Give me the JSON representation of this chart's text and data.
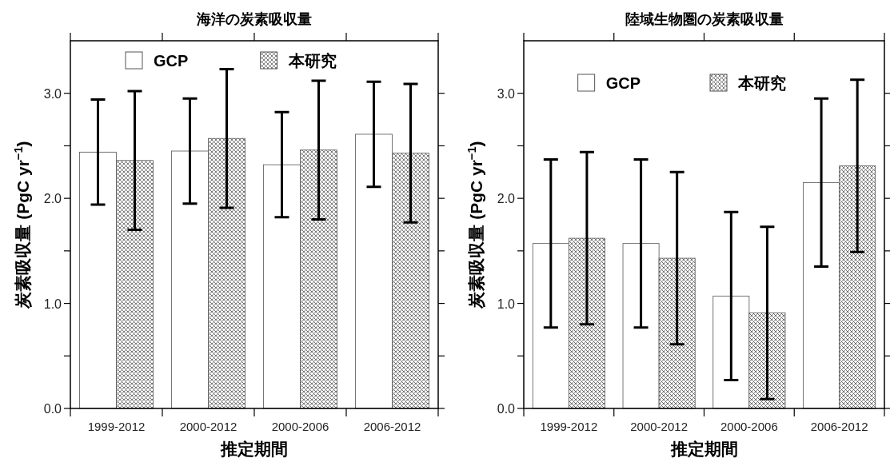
{
  "chart_data": [
    {
      "type": "bar",
      "title": "海洋の炭素吸収量",
      "xlabel": "推定期間",
      "ylabel": "炭素吸収量 (PgC yr$^{−1}$)",
      "categories": [
        "1999-2012",
        "2000-2012",
        "2000-2006",
        "2006-2012"
      ],
      "ylim": [
        0,
        3.5
      ],
      "yticks": [
        {
          "value": 0,
          "label": "0.0"
        },
        {
          "value": 0.5,
          "label": null
        },
        {
          "value": 1,
          "label": "1.0"
        },
        {
          "value": 1.5,
          "label": null
        },
        {
          "value": 2,
          "label": "2.0"
        },
        {
          "value": 2.5,
          "label": null
        },
        {
          "value": 3,
          "label": "3.0"
        }
      ],
      "legend": "top",
      "grid": false,
      "series": [
        {
          "name": "GCP",
          "color": "#ffffff",
          "values": [
            2.44,
            2.45,
            2.32,
            2.61
          ],
          "errors": [
            0.5,
            0.5,
            0.5,
            0.5
          ]
        },
        {
          "name": "本研究",
          "color": "#555555",
          "values": [
            2.36,
            2.57,
            2.46,
            2.43
          ],
          "errors": [
            0.66,
            0.66,
            0.66,
            0.66
          ]
        }
      ]
    },
    {
      "type": "bar",
      "title": "陸域生物圏の炭素吸収量",
      "xlabel": "推定期間",
      "ylabel": "炭素吸収量 (PgC yr$^{−1}$)",
      "categories": [
        "1999-2012",
        "2000-2012",
        "2000-2006",
        "2006-2012"
      ],
      "ylim": [
        0,
        3.5
      ],
      "yticks": [
        {
          "value": 0,
          "label": "0.0"
        },
        {
          "value": 0.5,
          "label": null
        },
        {
          "value": 1,
          "label": "1.0"
        },
        {
          "value": 1.5,
          "label": null
        },
        {
          "value": 2,
          "label": "2.0"
        },
        {
          "value": 2.5,
          "label": null
        },
        {
          "value": 3,
          "label": "3.0"
        }
      ],
      "legend": "top",
      "grid": false,
      "series": [
        {
          "name": "GCP",
          "color": "#ffffff",
          "values": [
            1.57,
            1.57,
            1.07,
            2.15
          ],
          "errors": [
            0.8,
            0.8,
            0.8,
            0.8
          ]
        },
        {
          "name": "本研究",
          "color": "#555555",
          "values": [
            1.62,
            1.43,
            0.91,
            2.31
          ],
          "errors": [
            0.82,
            0.82,
            0.82,
            0.82
          ]
        }
      ]
    }
  ]
}
